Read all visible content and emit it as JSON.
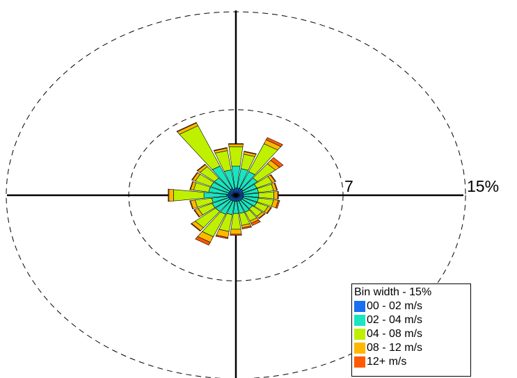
{
  "chart_data": {
    "type": "wind-rose",
    "rings": [
      {
        "value": 7,
        "label": "7"
      },
      {
        "value": 15,
        "label": "15%"
      }
    ],
    "legend": {
      "title": "Bin width - 15%",
      "bins": [
        {
          "label": "00 - 02 m/s",
          "color": "#1a6ef0"
        },
        {
          "label": "02 - 04 m/s",
          "color": "#17e6c0"
        },
        {
          "label": "04 - 08 m/s",
          "color": "#bff000"
        },
        {
          "label": "08 - 12 m/s",
          "color": "#ffb800"
        },
        {
          "label": "12+ m/s",
          "color": "#ff5a00"
        }
      ]
    },
    "directions": [
      {
        "angle": 0,
        "values": [
          0.6,
          1.8,
          1.6,
          0.2,
          0.05
        ]
      },
      {
        "angle": 15,
        "values": [
          0.6,
          1.6,
          1.2,
          0.2,
          0.05
        ]
      },
      {
        "angle": 30,
        "values": [
          0.6,
          1.5,
          2.5,
          0.35,
          0.2
        ]
      },
      {
        "angle": 45,
        "values": [
          0.6,
          1.2,
          1.5,
          0.35,
          0.3
        ]
      },
      {
        "angle": 60,
        "values": [
          0.5,
          1.0,
          1.1,
          0.2,
          0.05
        ]
      },
      {
        "angle": 75,
        "values": [
          0.5,
          1.0,
          1.0,
          0.2,
          0.05
        ]
      },
      {
        "angle": 90,
        "values": [
          0.5,
          1.0,
          1.0,
          0.25,
          0.05
        ]
      },
      {
        "angle": 105,
        "values": [
          0.5,
          1.0,
          1.0,
          0.3,
          0.1
        ]
      },
      {
        "angle": 120,
        "values": [
          0.5,
          1.0,
          0.8,
          0.2,
          0.05
        ]
      },
      {
        "angle": 135,
        "values": [
          0.5,
          0.9,
          0.8,
          0.2,
          0.05
        ]
      },
      {
        "angle": 150,
        "values": [
          0.5,
          1.0,
          0.8,
          0.2,
          0.2
        ]
      },
      {
        "angle": 165,
        "values": [
          0.5,
          1.0,
          1.0,
          0.2,
          0.1
        ]
      },
      {
        "angle": 180,
        "values": [
          0.5,
          1.0,
          1.3,
          0.4,
          0.1
        ]
      },
      {
        "angle": 195,
        "values": [
          0.5,
          1.1,
          1.4,
          0.5,
          0.1
        ]
      },
      {
        "angle": 210,
        "values": [
          0.5,
          1.2,
          2.0,
          0.5,
          0.25
        ]
      },
      {
        "angle": 225,
        "values": [
          0.5,
          1.2,
          1.7,
          0.3,
          0.05
        ]
      },
      {
        "angle": 240,
        "values": [
          0.5,
          1.2,
          1.0,
          0.25,
          0.05
        ]
      },
      {
        "angle": 255,
        "values": [
          0.5,
          1.1,
          1.1,
          0.3,
          0.05
        ]
      },
      {
        "angle": 270,
        "values": [
          0.6,
          1.5,
          2.0,
          0.3,
          0.05
        ]
      },
      {
        "angle": 285,
        "values": [
          0.5,
          1.3,
          1.0,
          0.2,
          0.05
        ]
      },
      {
        "angle": 300,
        "values": [
          0.5,
          1.3,
          1.1,
          0.2,
          0.05
        ]
      },
      {
        "angle": 315,
        "values": [
          0.5,
          1.3,
          1.2,
          0.2,
          0.05
        ]
      },
      {
        "angle": 330,
        "values": [
          0.6,
          2.0,
          3.6,
          0.25,
          0.05
        ]
      },
      {
        "angle": 345,
        "values": [
          0.5,
          1.6,
          1.6,
          0.2,
          0.05
        ]
      }
    ]
  }
}
